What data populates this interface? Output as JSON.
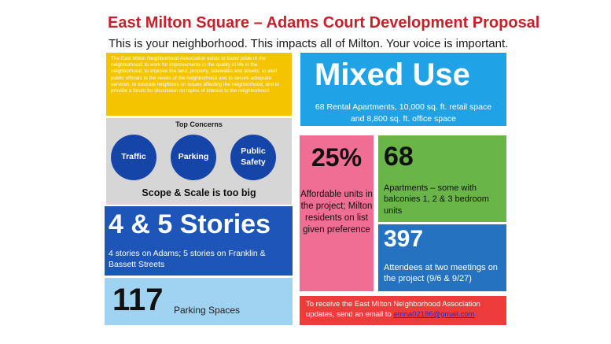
{
  "header": {
    "title": "East Milton Square – Adams Court Development Proposal",
    "subtitle": "This is your neighborhood.  This impacts all of Milton.  Your voice is important."
  },
  "mission": {
    "text": "The East Milton Neighborhood Association exists to foster pride in the neighborhood; to work for improvements in the quality of life in the neighborhood; to improve the land, property, sidewalks and streets; to alert public officials to the needs of the neighborhood and to secure adequate services; to educate neighbors on issues affecting the neighborhood; and to provide a forum for discussion on topics of interest to the neighborhood."
  },
  "mixed_use": {
    "headline": "Mixed Use",
    "line1": "68 Rental Apartments, 10,000 sq. ft. retail space",
    "line2": "and 8,800 sq. ft. office space"
  },
  "concerns": {
    "heading": "Top Concerns",
    "items": [
      "Traffic",
      "Parking",
      "Public Safety"
    ],
    "footer": "Scope & Scale is too big"
  },
  "stories": {
    "headline": "4 & 5 Stories",
    "detail": "4 stories on Adams; 5 stories on Franklin & Bassett Streets"
  },
  "parking": {
    "number": "117",
    "label": "Parking Spaces"
  },
  "affordable": {
    "percent": "25%",
    "detail": "Affordable units in the project; Milton residents on list given preference"
  },
  "apartments": {
    "number": "68",
    "detail": "Apartments – some with balconies 1, 2 & 3 bedroom units"
  },
  "attendees": {
    "number": "397",
    "detail": "Attendees at two meetings on the project (9/6 & 9/27)"
  },
  "email_box": {
    "text": "To receive the East Milton Neighborhood Association updates, send an email to",
    "address": "emna02186@gmail.com"
  },
  "colors": {
    "title_red": "#c8202a",
    "mission_yellow": "#f5c400",
    "mixed_use_blue": "#1fa3e6",
    "concerns_gray": "#d6d6d6",
    "circle_navy": "#1545a8",
    "stories_blue": "#1d55b8",
    "parking_lightblue": "#9fd3f1",
    "affordable_pink": "#f06e93",
    "apartments_green": "#69b547",
    "attendees_blue": "#2472c0",
    "email_red": "#ee3c3c"
  }
}
